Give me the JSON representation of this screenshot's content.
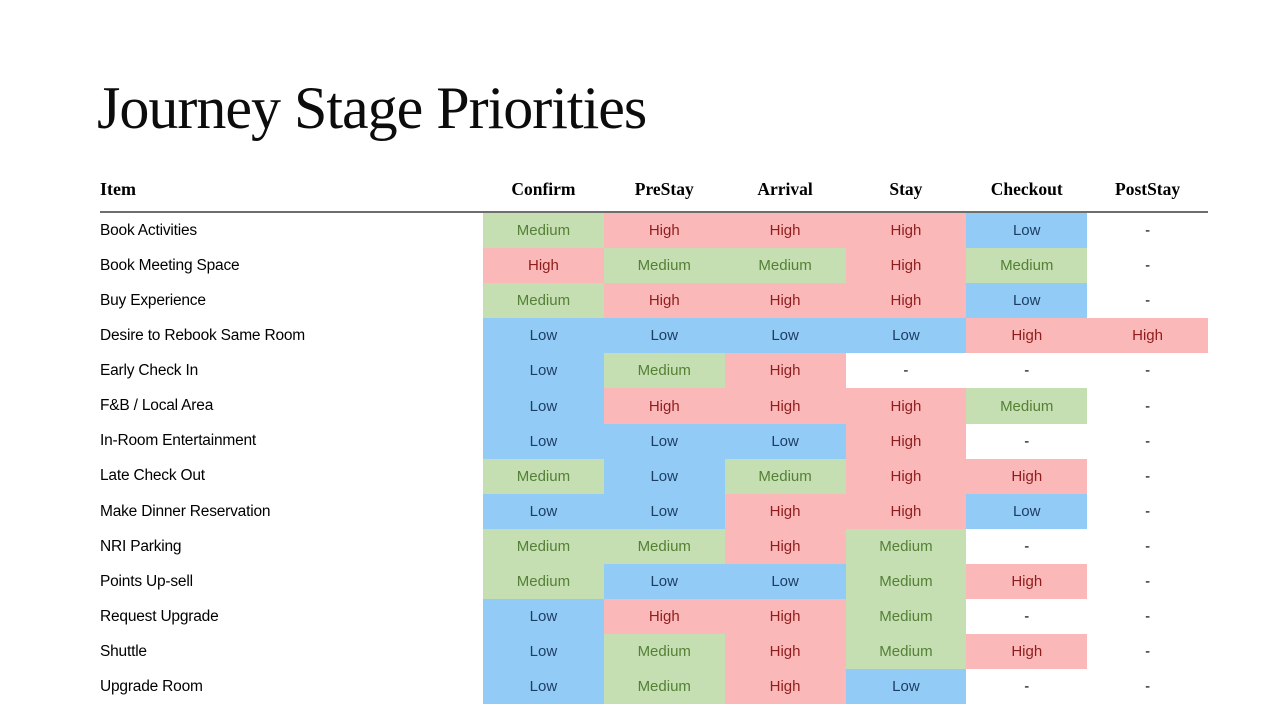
{
  "slide": {
    "title": "Journey Stage Priorities"
  },
  "table": {
    "columns": [
      "Item",
      "Confirm",
      "PreStay",
      "Arrival",
      "Stay",
      "Checkout",
      "PostStay"
    ],
    "rows": [
      {
        "item": "Book Activities",
        "values": [
          "Medium",
          "High",
          "High",
          "High",
          "Low",
          "-"
        ]
      },
      {
        "item": "Book Meeting Space",
        "values": [
          "High",
          "Medium",
          "Medium",
          "High",
          "Medium",
          "-"
        ]
      },
      {
        "item": "Buy Experience",
        "values": [
          "Medium",
          "High",
          "High",
          "High",
          "Low",
          "-"
        ]
      },
      {
        "item": "Desire to Rebook Same Room",
        "values": [
          "Low",
          "Low",
          "Low",
          "Low",
          "High",
          "High"
        ]
      },
      {
        "item": "Early Check In",
        "values": [
          "Low",
          "Medium",
          "High",
          "-",
          "-",
          "-"
        ]
      },
      {
        "item": "F&B / Local Area",
        "values": [
          "Low",
          "High",
          "High",
          "High",
          "Medium",
          "-"
        ]
      },
      {
        "item": "In-Room Entertainment",
        "values": [
          "Low",
          "Low",
          "Low",
          "High",
          "-",
          "-"
        ]
      },
      {
        "item": "Late Check Out",
        "values": [
          "Medium",
          "Low",
          "Medium",
          "High",
          "High",
          "-"
        ]
      },
      {
        "item": "Make Dinner Reservation",
        "values": [
          "Low",
          "Low",
          "High",
          "High",
          "Low",
          "-"
        ]
      },
      {
        "item": "NRI Parking",
        "values": [
          "Medium",
          "Medium",
          "High",
          "Medium",
          "-",
          "-"
        ]
      },
      {
        "item": "Points Up-sell",
        "values": [
          "Medium",
          "Low",
          "Low",
          "Medium",
          "High",
          "-"
        ]
      },
      {
        "item": "Request Upgrade",
        "values": [
          "Low",
          "High",
          "High",
          "Medium",
          "-",
          "-"
        ]
      },
      {
        "item": "Shuttle",
        "values": [
          "Low",
          "Medium",
          "High",
          "Medium",
          "High",
          "-"
        ]
      },
      {
        "item": "Upgrade Room",
        "values": [
          "Low",
          "Medium",
          "High",
          "Low",
          "-",
          "-"
        ]
      }
    ]
  },
  "cell_styles": {
    "High": {
      "bg": "#fbb8b8",
      "text": "#8f1d1d"
    },
    "Medium": {
      "bg": "#c5deb2",
      "text": "#538135"
    },
    "Low": {
      "bg": "#92ccf6",
      "text": "#1e3d64"
    },
    "-": {
      "bg": "#ffffff",
      "text": "#000000"
    }
  }
}
